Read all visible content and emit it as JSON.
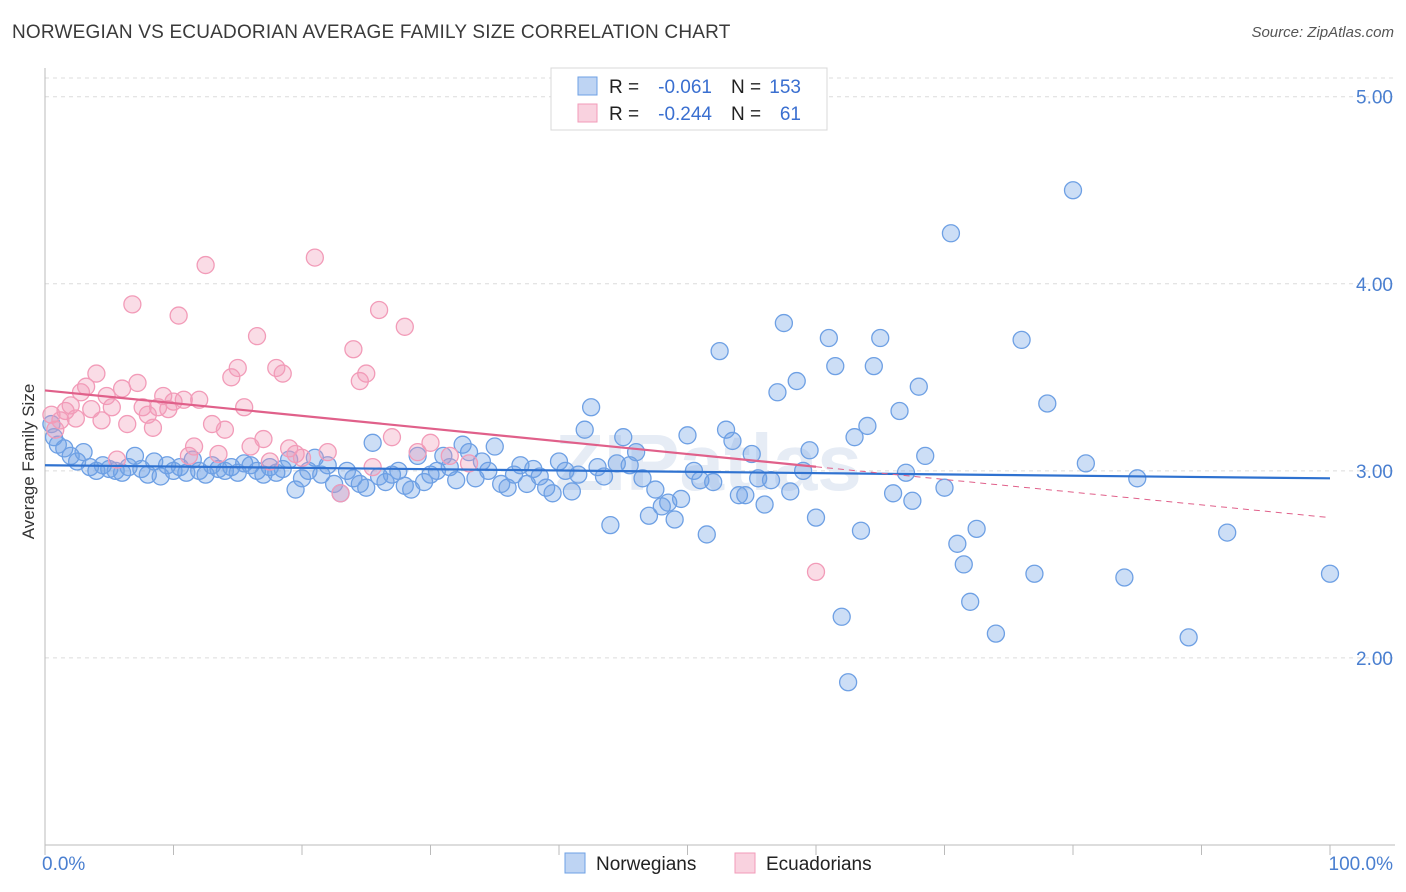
{
  "title": "NORWEGIAN VS ECUADORIAN AVERAGE FAMILY SIZE CORRELATION CHART",
  "source": "Source: ZipAtlas.com",
  "watermark": "ZIPatlas",
  "chart_data": {
    "type": "scatter",
    "title": "NORWEGIAN VS ECUADORIAN AVERAGE FAMILY SIZE CORRELATION CHART",
    "xlabel": "",
    "ylabel": "Average Family Size",
    "xlim": [
      0,
      100
    ],
    "ylim": [
      1.0,
      5.1
    ],
    "x_tick_labels": [
      "0.0%",
      "100.0%"
    ],
    "y_ticks": [
      2.0,
      3.0,
      4.0,
      5.0
    ],
    "y_tick_labels": [
      "2.00",
      "3.00",
      "4.00",
      "5.00"
    ],
    "grid": true,
    "legend_position": "top-center",
    "legend": [
      {
        "r_label": "R = ",
        "r_value": "-0.061",
        "n_label": "N = ",
        "n_value": "153"
      },
      {
        "r_label": "R = ",
        "r_value": "-0.244",
        "n_label": "N = ",
        "n_value": "61"
      }
    ],
    "series": [
      {
        "name": "Norwegians",
        "color": "#6ea0e4",
        "line_color": "#2f72d0",
        "trend": {
          "x0": 0,
          "y0": 3.03,
          "x1": 100,
          "y1": 2.96,
          "solid_until": 100
        },
        "points": [
          [
            0.5,
            3.25
          ],
          [
            0.7,
            3.18
          ],
          [
            1.0,
            3.14
          ],
          [
            1.5,
            3.12
          ],
          [
            2.0,
            3.08
          ],
          [
            2.5,
            3.05
          ],
          [
            3.0,
            3.1
          ],
          [
            3.5,
            3.02
          ],
          [
            4.0,
            3.0
          ],
          [
            4.5,
            3.03
          ],
          [
            5.0,
            3.01
          ],
          [
            5.5,
            3.0
          ],
          [
            6.0,
            2.99
          ],
          [
            6.5,
            3.02
          ],
          [
            7.0,
            3.08
          ],
          [
            7.5,
            3.01
          ],
          [
            8.0,
            2.98
          ],
          [
            8.5,
            3.05
          ],
          [
            9.0,
            2.97
          ],
          [
            9.5,
            3.03
          ],
          [
            10,
            3.0
          ],
          [
            10.5,
            3.02
          ],
          [
            11,
            2.99
          ],
          [
            11.5,
            3.06
          ],
          [
            12,
            3.0
          ],
          [
            12.5,
            2.98
          ],
          [
            13,
            3.03
          ],
          [
            13.5,
            3.01
          ],
          [
            14,
            3.0
          ],
          [
            14.5,
            3.02
          ],
          [
            15,
            2.99
          ],
          [
            15.5,
            3.04
          ],
          [
            16,
            3.03
          ],
          [
            16.5,
            3.0
          ],
          [
            17,
            2.98
          ],
          [
            17.5,
            3.02
          ],
          [
            18,
            2.99
          ],
          [
            18.5,
            3.01
          ],
          [
            19,
            3.06
          ],
          [
            19.5,
            2.9
          ],
          [
            20,
            2.96
          ],
          [
            20.5,
            3.0
          ],
          [
            21,
            3.07
          ],
          [
            21.5,
            2.98
          ],
          [
            22,
            3.03
          ],
          [
            22.5,
            2.93
          ],
          [
            23,
            2.88
          ],
          [
            23.5,
            3.0
          ],
          [
            24,
            2.96
          ],
          [
            24.5,
            2.93
          ],
          [
            25,
            2.91
          ],
          [
            25.5,
            3.15
          ],
          [
            26,
            2.97
          ],
          [
            26.5,
            2.94
          ],
          [
            27,
            2.98
          ],
          [
            27.5,
            3.0
          ],
          [
            28,
            2.92
          ],
          [
            28.5,
            2.9
          ],
          [
            29,
            3.08
          ],
          [
            29.5,
            2.94
          ],
          [
            30,
            2.98
          ],
          [
            30.5,
            3.0
          ],
          [
            31,
            3.08
          ],
          [
            31.5,
            3.02
          ],
          [
            32,
            2.95
          ],
          [
            32.5,
            3.14
          ],
          [
            33,
            3.1
          ],
          [
            33.5,
            2.96
          ],
          [
            34,
            3.05
          ],
          [
            34.5,
            3.0
          ],
          [
            35,
            3.13
          ],
          [
            35.5,
            2.93
          ],
          [
            36,
            2.91
          ],
          [
            36.5,
            2.98
          ],
          [
            37,
            3.03
          ],
          [
            37.5,
            2.93
          ],
          [
            38,
            3.01
          ],
          [
            38.5,
            2.97
          ],
          [
            39,
            2.91
          ],
          [
            39.5,
            2.88
          ],
          [
            40,
            3.05
          ],
          [
            40.5,
            3.0
          ],
          [
            41,
            2.89
          ],
          [
            41.5,
            2.98
          ],
          [
            42,
            3.22
          ],
          [
            42.5,
            3.34
          ],
          [
            43,
            3.02
          ],
          [
            43.5,
            2.97
          ],
          [
            44,
            2.71
          ],
          [
            44.5,
            3.04
          ],
          [
            45,
            3.18
          ],
          [
            45.5,
            3.03
          ],
          [
            46,
            3.1
          ],
          [
            46.5,
            2.96
          ],
          [
            47,
            2.76
          ],
          [
            47.5,
            2.9
          ],
          [
            48,
            2.81
          ],
          [
            48.5,
            2.83
          ],
          [
            49,
            2.74
          ],
          [
            49.5,
            2.85
          ],
          [
            50,
            3.19
          ],
          [
            50.5,
            3.0
          ],
          [
            51,
            2.95
          ],
          [
            51.5,
            2.66
          ],
          [
            52,
            2.94
          ],
          [
            52.5,
            3.64
          ],
          [
            53,
            3.22
          ],
          [
            53.5,
            3.16
          ],
          [
            54,
            2.87
          ],
          [
            54.5,
            2.87
          ],
          [
            55,
            3.09
          ],
          [
            55.5,
            2.96
          ],
          [
            56,
            2.82
          ],
          [
            56.5,
            2.95
          ],
          [
            57,
            3.42
          ],
          [
            57.5,
            3.79
          ],
          [
            58,
            2.89
          ],
          [
            58.5,
            3.48
          ],
          [
            59,
            3.0
          ],
          [
            59.5,
            3.11
          ],
          [
            60,
            2.75
          ],
          [
            61,
            3.71
          ],
          [
            61.5,
            3.56
          ],
          [
            62,
            2.22
          ],
          [
            62.5,
            1.87
          ],
          [
            63,
            3.18
          ],
          [
            63.5,
            2.68
          ],
          [
            64,
            3.24
          ],
          [
            64.5,
            3.56
          ],
          [
            65,
            3.71
          ],
          [
            66,
            2.88
          ],
          [
            66.5,
            3.32
          ],
          [
            67,
            2.99
          ],
          [
            67.5,
            2.84
          ],
          [
            68,
            3.45
          ],
          [
            68.5,
            3.08
          ],
          [
            70,
            2.91
          ],
          [
            70.5,
            4.27
          ],
          [
            71,
            2.61
          ],
          [
            71.5,
            2.5
          ],
          [
            72,
            2.3
          ],
          [
            72.5,
            2.69
          ],
          [
            74,
            2.13
          ],
          [
            76,
            3.7
          ],
          [
            77,
            2.45
          ],
          [
            78,
            3.36
          ],
          [
            80,
            4.5
          ],
          [
            81,
            3.04
          ],
          [
            84,
            2.43
          ],
          [
            85,
            2.96
          ],
          [
            89,
            2.11
          ],
          [
            92,
            2.67
          ],
          [
            100,
            2.45
          ]
        ]
      },
      {
        "name": "Ecuadorians",
        "color": "#f29bb8",
        "line_color": "#e0608a",
        "trend": {
          "x0": 0,
          "y0": 3.43,
          "x1": 100,
          "y1": 2.75,
          "solid_until": 60
        },
        "points": [
          [
            0.5,
            3.3
          ],
          [
            0.8,
            3.22
          ],
          [
            1.2,
            3.27
          ],
          [
            1.6,
            3.32
          ],
          [
            2.0,
            3.35
          ],
          [
            2.4,
            3.28
          ],
          [
            2.8,
            3.42
          ],
          [
            3.2,
            3.45
          ],
          [
            3.6,
            3.33
          ],
          [
            4.0,
            3.52
          ],
          [
            4.4,
            3.27
          ],
          [
            4.8,
            3.4
          ],
          [
            5.2,
            3.34
          ],
          [
            5.6,
            3.06
          ],
          [
            6.0,
            3.44
          ],
          [
            6.4,
            3.25
          ],
          [
            6.8,
            3.89
          ],
          [
            7.2,
            3.47
          ],
          [
            7.6,
            3.34
          ],
          [
            8.0,
            3.3
          ],
          [
            8.4,
            3.23
          ],
          [
            8.8,
            3.34
          ],
          [
            9.2,
            3.4
          ],
          [
            9.6,
            3.33
          ],
          [
            10.0,
            3.37
          ],
          [
            10.4,
            3.83
          ],
          [
            10.8,
            3.38
          ],
          [
            11.2,
            3.08
          ],
          [
            11.6,
            3.13
          ],
          [
            12.0,
            3.38
          ],
          [
            12.5,
            4.1
          ],
          [
            13.0,
            3.25
          ],
          [
            13.5,
            3.09
          ],
          [
            14.0,
            3.22
          ],
          [
            14.5,
            3.5
          ],
          [
            15.0,
            3.55
          ],
          [
            15.5,
            3.34
          ],
          [
            16.0,
            3.13
          ],
          [
            16.5,
            3.72
          ],
          [
            17.0,
            3.17
          ],
          [
            17.5,
            3.05
          ],
          [
            18.0,
            3.55
          ],
          [
            18.5,
            3.52
          ],
          [
            19.0,
            3.12
          ],
          [
            19.5,
            3.09
          ],
          [
            20.0,
            3.07
          ],
          [
            21.0,
            4.14
          ],
          [
            22.0,
            3.1
          ],
          [
            23.0,
            2.88
          ],
          [
            24.0,
            3.65
          ],
          [
            24.5,
            3.48
          ],
          [
            25.0,
            3.52
          ],
          [
            25.5,
            3.02
          ],
          [
            26.0,
            3.86
          ],
          [
            27.0,
            3.18
          ],
          [
            28.0,
            3.77
          ],
          [
            29.0,
            3.1
          ],
          [
            30.0,
            3.15
          ],
          [
            31.5,
            3.08
          ],
          [
            33.0,
            3.04
          ],
          [
            60.0,
            2.46
          ]
        ]
      }
    ]
  },
  "bottom_legend": [
    {
      "label": "Norwegians",
      "color": "#6ea0e4"
    },
    {
      "label": "Ecuadorians",
      "color": "#f29bb8"
    }
  ]
}
